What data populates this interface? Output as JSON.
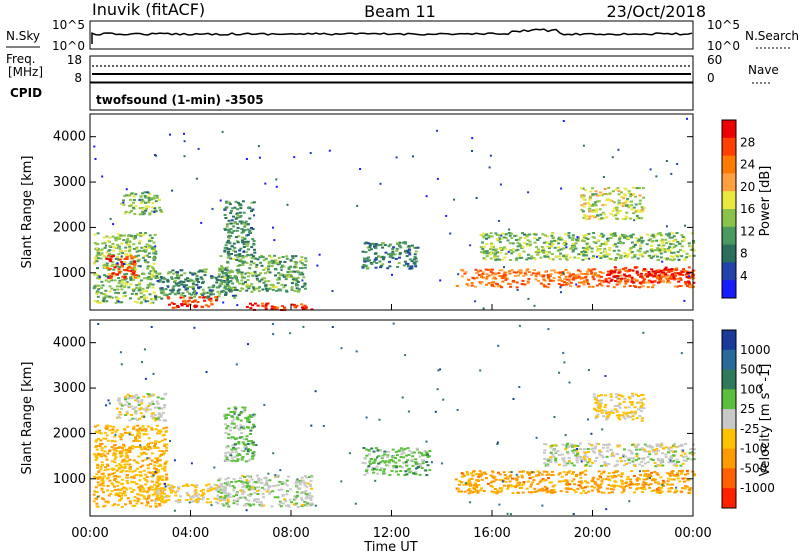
{
  "header": {
    "site": "Inuvik (fitACF)",
    "beam": "Beam 11",
    "date": "23/Oct/2018"
  },
  "noise_panel": {
    "left_label": "N.Sky",
    "right_label": "N.Search",
    "left_ticks": [
      "10^5",
      "10^0"
    ],
    "right_ticks": [
      "10^5",
      "10^0"
    ]
  },
  "freq_panel": {
    "left_label_1": "Freq.",
    "left_label_2": "[MHz]",
    "left_ticks": [
      "18",
      "8"
    ],
    "right_label": "Nave",
    "right_ticks": [
      "60",
      "0"
    ]
  },
  "cpid": {
    "label": "CPID",
    "text": "twofsound (1-min) -3505"
  },
  "power_panel": {
    "ylabel": "Slant Range [km]",
    "yticks": [
      "4000",
      "3000",
      "2000",
      "1000"
    ],
    "colorbar_label": "Power [dB]",
    "colorbar_ticks": [
      "28",
      "24",
      "20",
      "16",
      "12",
      "8",
      "4"
    ],
    "colors": [
      "#1a1aff",
      "#2244aa",
      "#2a6f5e",
      "#4a9960",
      "#8bc34a",
      "#e8e840",
      "#ffa040",
      "#ff7a00",
      "#ff4000",
      "#ee0000"
    ]
  },
  "velocity_panel": {
    "ylabel": "Slant Range [km]",
    "yticks": [
      "4000",
      "3000",
      "2000",
      "1000"
    ],
    "colorbar_label": "Velocity [m s^-1]",
    "colorbar_ticks": [
      "1000",
      "500",
      "100",
      "25",
      "-25",
      "-100",
      "-500",
      "-1000"
    ],
    "colors": [
      "#1a3a9a",
      "#2a6a9a",
      "#2f7a5a",
      "#5abf3a",
      "#c8c8c8",
      "#ffc000",
      "#ff9a00",
      "#ff6000",
      "#ff2000"
    ]
  },
  "xaxis": {
    "ticks": [
      "00:00",
      "04:00",
      "08:00",
      "12:00",
      "16:00",
      "20:00",
      "00:00"
    ],
    "label": "Time UT"
  },
  "chart_data": [
    {
      "type": "heatmap",
      "title": "Power",
      "xlabel": "Time UT",
      "ylabel": "Slant Range [km]",
      "xlim": [
        "00:00",
        "24:00"
      ],
      "ylim": [
        180,
        4500
      ],
      "colorbar": {
        "label": "Power [dB]",
        "range": [
          0,
          32
        ]
      },
      "regions": [
        {
          "t": [
            0.1,
            2.6
          ],
          "r": [
            350,
            1900
          ],
          "level": 14
        },
        {
          "t": [
            0.6,
            1.8
          ],
          "r": [
            900,
            1400
          ],
          "level": 28
        },
        {
          "t": [
            1.2,
            2.8
          ],
          "r": [
            2300,
            2800
          ],
          "level": 14
        },
        {
          "t": [
            2.5,
            5.8
          ],
          "r": [
            450,
            1100
          ],
          "level": 10
        },
        {
          "t": [
            3.0,
            5.0
          ],
          "r": [
            250,
            500
          ],
          "level": 28
        },
        {
          "t": [
            5.0,
            8.6
          ],
          "r": [
            600,
            1400
          ],
          "level": 12
        },
        {
          "t": [
            6.2,
            8.8
          ],
          "r": [
            200,
            350
          ],
          "level": 28
        },
        {
          "t": [
            5.3,
            6.5
          ],
          "r": [
            1400,
            2600
          ],
          "level": 10
        },
        {
          "t": [
            10.8,
            13.0
          ],
          "r": [
            1100,
            1700
          ],
          "level": 9
        },
        {
          "t": [
            14.5,
            24.0
          ],
          "r": [
            700,
            1100
          ],
          "level": 24
        },
        {
          "t": [
            20.5,
            24.0
          ],
          "r": [
            800,
            1150
          ],
          "level": 30
        },
        {
          "t": [
            15.5,
            24.0
          ],
          "r": [
            1300,
            1900
          ],
          "level": 14
        },
        {
          "t": [
            19.5,
            22.0
          ],
          "r": [
            2200,
            2900
          ],
          "level": 16
        }
      ]
    },
    {
      "type": "heatmap",
      "title": "Velocity",
      "xlabel": "Time UT",
      "ylabel": "Slant Range [km]",
      "xlim": [
        "00:00",
        "24:00"
      ],
      "ylim": [
        180,
        4500
      ],
      "colorbar": {
        "label": "Velocity [m s^-1]",
        "range": [
          -1000,
          1000
        ]
      },
      "regions": [
        {
          "t": [
            0.1,
            3.0
          ],
          "r": [
            400,
            2200
          ],
          "level": -300
        },
        {
          "t": [
            1.0,
            3.0
          ],
          "r": [
            2300,
            2900
          ],
          "level": 0
        },
        {
          "t": [
            2.5,
            5.5
          ],
          "r": [
            500,
            900
          ],
          "level": -150
        },
        {
          "t": [
            5.0,
            8.8
          ],
          "r": [
            400,
            1100
          ],
          "level": 40
        },
        {
          "t": [
            5.3,
            6.5
          ],
          "r": [
            1400,
            2600
          ],
          "level": 200
        },
        {
          "t": [
            10.8,
            13.5
          ],
          "r": [
            1100,
            1700
          ],
          "level": 200
        },
        {
          "t": [
            14.5,
            24.0
          ],
          "r": [
            700,
            1200
          ],
          "level": -400
        },
        {
          "t": [
            18.0,
            24.0
          ],
          "r": [
            1300,
            1800
          ],
          "level": 0
        },
        {
          "t": [
            20.0,
            22.0
          ],
          "r": [
            2300,
            2900
          ],
          "level": -150
        }
      ]
    }
  ]
}
